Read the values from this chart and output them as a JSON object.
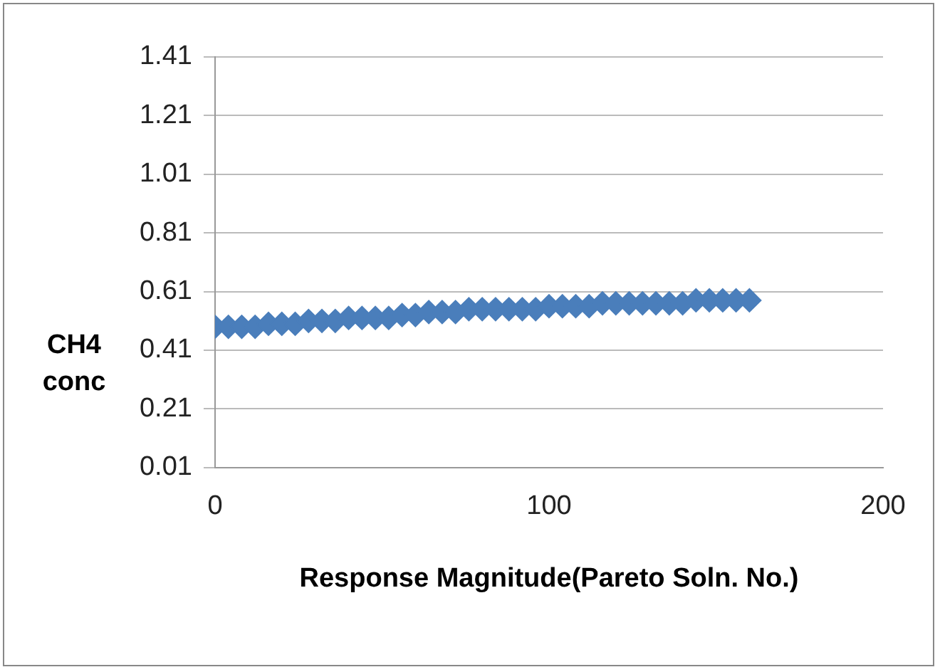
{
  "chart_data": {
    "type": "scatter",
    "xlabel": "Response Magnitude(Pareto Soln. No.)",
    "ylabel": "CH4 conc",
    "x": [
      0,
      4,
      8,
      12,
      16,
      20,
      24,
      28,
      32,
      36,
      40,
      44,
      48,
      52,
      56,
      60,
      64,
      68,
      72,
      76,
      80,
      84,
      88,
      92,
      96,
      100,
      104,
      108,
      112,
      116,
      120,
      124,
      128,
      132,
      136,
      140,
      144,
      148,
      152,
      156,
      160
    ],
    "series": [
      {
        "color": "#4a7ebb",
        "values": [
          0.49,
          0.49,
          0.49,
          0.49,
          0.5,
          0.5,
          0.5,
          0.51,
          0.51,
          0.51,
          0.52,
          0.52,
          0.52,
          0.52,
          0.53,
          0.53,
          0.54,
          0.54,
          0.54,
          0.55,
          0.55,
          0.55,
          0.55,
          0.55,
          0.55,
          0.56,
          0.56,
          0.56,
          0.56,
          0.57,
          0.57,
          0.57,
          0.57,
          0.57,
          0.57,
          0.57,
          0.58,
          0.58,
          0.58,
          0.58,
          0.58
        ]
      }
    ],
    "xlim": [
      0,
      200
    ],
    "xticks": [
      0,
      100,
      200
    ],
    "ylim": [
      0.01,
      1.41
    ],
    "yticks": [
      0.01,
      0.21,
      0.41,
      0.61,
      0.81,
      1.01,
      1.21,
      1.41
    ],
    "grid": "y",
    "legend": false,
    "marker": "diamond"
  }
}
